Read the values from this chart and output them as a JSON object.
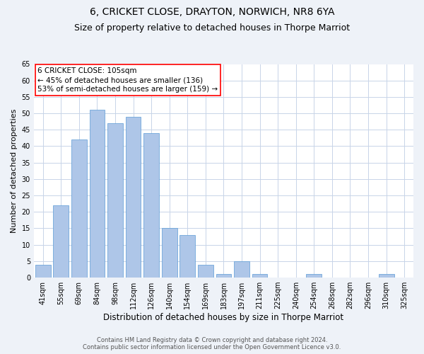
{
  "title": "6, CRICKET CLOSE, DRAYTON, NORWICH, NR8 6YA",
  "subtitle": "Size of property relative to detached houses in Thorpe Marriot",
  "xlabel": "Distribution of detached houses by size in Thorpe Marriot",
  "ylabel": "Number of detached properties",
  "categories": [
    "41sqm",
    "55sqm",
    "69sqm",
    "84sqm",
    "98sqm",
    "112sqm",
    "126sqm",
    "140sqm",
    "154sqm",
    "169sqm",
    "183sqm",
    "197sqm",
    "211sqm",
    "225sqm",
    "240sqm",
    "254sqm",
    "268sqm",
    "282sqm",
    "296sqm",
    "310sqm",
    "325sqm"
  ],
  "values": [
    4,
    22,
    42,
    51,
    47,
    49,
    44,
    15,
    13,
    4,
    1,
    5,
    1,
    0,
    0,
    1,
    0,
    0,
    0,
    1,
    0
  ],
  "bar_color": "#aec6e8",
  "bar_edge_color": "#5b9bd5",
  "annotation_text": "6 CRICKET CLOSE: 105sqm\n← 45% of detached houses are smaller (136)\n53% of semi-detached houses are larger (159) →",
  "ylim": [
    0,
    65
  ],
  "yticks": [
    0,
    5,
    10,
    15,
    20,
    25,
    30,
    35,
    40,
    45,
    50,
    55,
    60,
    65
  ],
  "footer_line1": "Contains HM Land Registry data © Crown copyright and database right 2024.",
  "footer_line2": "Contains public sector information licensed under the Open Government Licence v3.0.",
  "bg_color": "#eef2f8",
  "plot_bg_color": "#ffffff",
  "grid_color": "#c8d4e8",
  "title_fontsize": 10,
  "subtitle_fontsize": 9,
  "tick_fontsize": 7,
  "ylabel_fontsize": 8,
  "xlabel_fontsize": 8.5,
  "annotation_fontsize": 7.5,
  "footer_fontsize": 6
}
